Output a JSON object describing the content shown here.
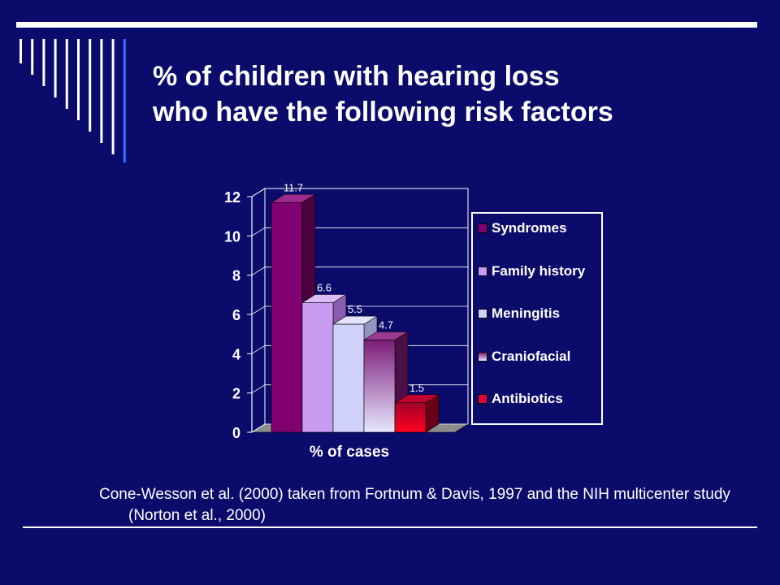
{
  "slide": {
    "title_line1": "% of children with hearing loss",
    "title_line2": "who have the following risk factors",
    "citation": "Cone-Wesson et al. (2000) taken from Fortnum & Davis, 1997 and the NIH multicenter study (Norton et al., 2000)"
  },
  "chart_data": {
    "type": "bar",
    "title": "",
    "xlabel": "% of cases",
    "ylabel": "",
    "ylim": [
      0,
      12
    ],
    "yticks": [
      "0",
      "2",
      "4",
      "6",
      "8",
      "10",
      "12"
    ],
    "grid": true,
    "legend_position": "right",
    "series": [
      {
        "name": "Syndromes",
        "value": 11.7,
        "label": "11.7",
        "color": "#800070"
      },
      {
        "name": "Family history",
        "value": 6.6,
        "label": "6.6",
        "color": "#c79bf0"
      },
      {
        "name": "Meningitis",
        "value": 5.5,
        "label": "5.5",
        "color": "#cfd1fa"
      },
      {
        "name": "Craniofacial",
        "value": 4.7,
        "label": "4.7",
        "color": "#8a2c84"
      },
      {
        "name": "Antibiotics",
        "value": 1.5,
        "label": "1.5",
        "color": "#e00040"
      }
    ]
  }
}
